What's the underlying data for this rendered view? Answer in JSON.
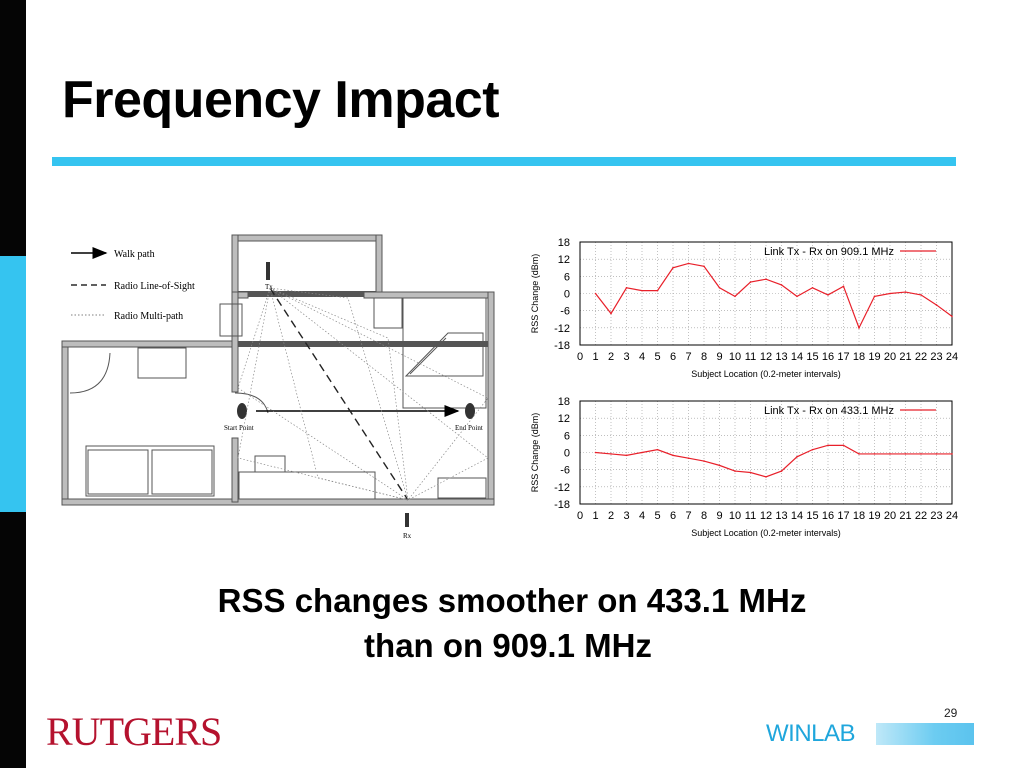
{
  "slide": {
    "title": "Frequency Impact",
    "caption_line1": "RSS changes smoother on 433.1 MHz",
    "caption_line2": "than on 909.1 MHz",
    "slide_number": "29",
    "logo_rutgers": "RUTGERS",
    "logo_winlab": "WINLAB"
  },
  "floorplan": {
    "legend": [
      "Walk path",
      "Radio Line-of-Sight",
      "Radio Multi-path"
    ],
    "labels": {
      "tx": "Tx",
      "rx": "Rx",
      "start": "Start Point",
      "end": "End Point"
    }
  },
  "chart_data": [
    {
      "type": "line",
      "legend": "Link Tx - Rx on 909.1 MHz",
      "xlabel": "Subject Location (0.2-meter intervals)",
      "ylabel": "RSS Change (dBm)",
      "x": [
        1,
        2,
        3,
        4,
        5,
        6,
        7,
        8,
        9,
        10,
        11,
        12,
        13,
        14,
        15,
        16,
        17,
        18,
        19,
        20,
        21,
        22,
        23,
        24
      ],
      "y": [
        0,
        -7,
        2,
        1,
        1,
        9,
        10.5,
        9.5,
        2,
        -1,
        4,
        5,
        3,
        -1,
        2,
        -0.5,
        2.5,
        -12,
        -1,
        0,
        0.5,
        -0.5,
        -4,
        -8
      ],
      "ylim": [
        -18,
        18
      ],
      "yticks": [
        18,
        12,
        6,
        0,
        -6,
        -12,
        -18
      ],
      "xlim": [
        0,
        24
      ],
      "xticks": [
        0,
        1,
        2,
        3,
        4,
        5,
        6,
        7,
        8,
        9,
        10,
        11,
        12,
        13,
        14,
        15,
        16,
        17,
        18,
        19,
        20,
        21,
        22,
        23,
        24
      ],
      "color": "#e8202a"
    },
    {
      "type": "line",
      "legend": "Link Tx - Rx on 433.1 MHz",
      "xlabel": "Subject Location (0.2-meter intervals)",
      "ylabel": "RSS Change (dBm)",
      "x": [
        1,
        2,
        3,
        4,
        5,
        6,
        7,
        8,
        9,
        10,
        11,
        12,
        13,
        14,
        15,
        16,
        17,
        18,
        19,
        20,
        21,
        22,
        23,
        24
      ],
      "y": [
        0,
        -0.5,
        -1,
        0,
        1,
        -1,
        -2,
        -3,
        -4.5,
        -6.5,
        -7,
        -8.5,
        -6.5,
        -1.5,
        1,
        2.5,
        2.5,
        -0.5,
        -0.5,
        -0.5,
        -0.5,
        -0.5,
        -0.5,
        -0.5
      ],
      "ylim": [
        -18,
        18
      ],
      "yticks": [
        18,
        12,
        6,
        0,
        -6,
        -12,
        -18
      ],
      "xlim": [
        0,
        24
      ],
      "xticks": [
        0,
        1,
        2,
        3,
        4,
        5,
        6,
        7,
        8,
        9,
        10,
        11,
        12,
        13,
        14,
        15,
        16,
        17,
        18,
        19,
        20,
        21,
        22,
        23,
        24
      ],
      "color": "#e8202a"
    }
  ]
}
